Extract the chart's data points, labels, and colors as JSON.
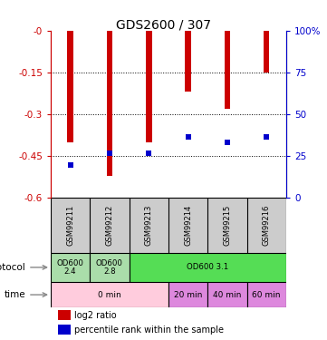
{
  "title": "GDS2600 / 307",
  "samples": [
    "GSM99211",
    "GSM99212",
    "GSM99213",
    "GSM99214",
    "GSM99215",
    "GSM99216"
  ],
  "log2_ratio": [
    -0.4,
    -0.52,
    -0.4,
    -0.22,
    -0.28,
    -0.15
  ],
  "percentile_rank_y": [
    -0.48,
    -0.44,
    -0.44,
    -0.38,
    -0.4,
    -0.38
  ],
  "bar_color": "#cc0000",
  "dot_color": "#0000cc",
  "ylim_left": [
    -0.6,
    0.0
  ],
  "ylim_right": [
    0,
    100
  ],
  "yticks_left": [
    0.0,
    -0.15,
    -0.3,
    -0.45,
    -0.6
  ],
  "ytick_labels_left": [
    "-0",
    "-0.15",
    "-0.3",
    "-0.45",
    "-0.6"
  ],
  "yticks_right": [
    0,
    25,
    50,
    75,
    100
  ],
  "ytick_labels_right": [
    "0",
    "25",
    "50",
    "75",
    "100%"
  ],
  "left_axis_color": "#cc0000",
  "right_axis_color": "#0000cc",
  "protocol_row": [
    {
      "label": "OD600\n2.4",
      "span": [
        0,
        1
      ],
      "color": "#aaddaa"
    },
    {
      "label": "OD600\n2.8",
      "span": [
        1,
        2
      ],
      "color": "#aaddaa"
    },
    {
      "label": "OD600 3.1",
      "span": [
        2,
        6
      ],
      "color": "#55dd55"
    }
  ],
  "time_row": [
    {
      "label": "0 min",
      "span": [
        0,
        3
      ],
      "color": "#ffccdd"
    },
    {
      "label": "20 min",
      "span": [
        3,
        4
      ],
      "color": "#dd88dd"
    },
    {
      "label": "40 min",
      "span": [
        4,
        5
      ],
      "color": "#dd88dd"
    },
    {
      "label": "60 min",
      "span": [
        5,
        6
      ],
      "color": "#dd88dd"
    }
  ],
  "sample_label_bg": "#cccccc",
  "legend_entries": [
    {
      "color": "#cc0000",
      "label": "log2 ratio"
    },
    {
      "color": "#0000cc",
      "label": "percentile rank within the sample"
    }
  ],
  "bar_width": 0.15
}
